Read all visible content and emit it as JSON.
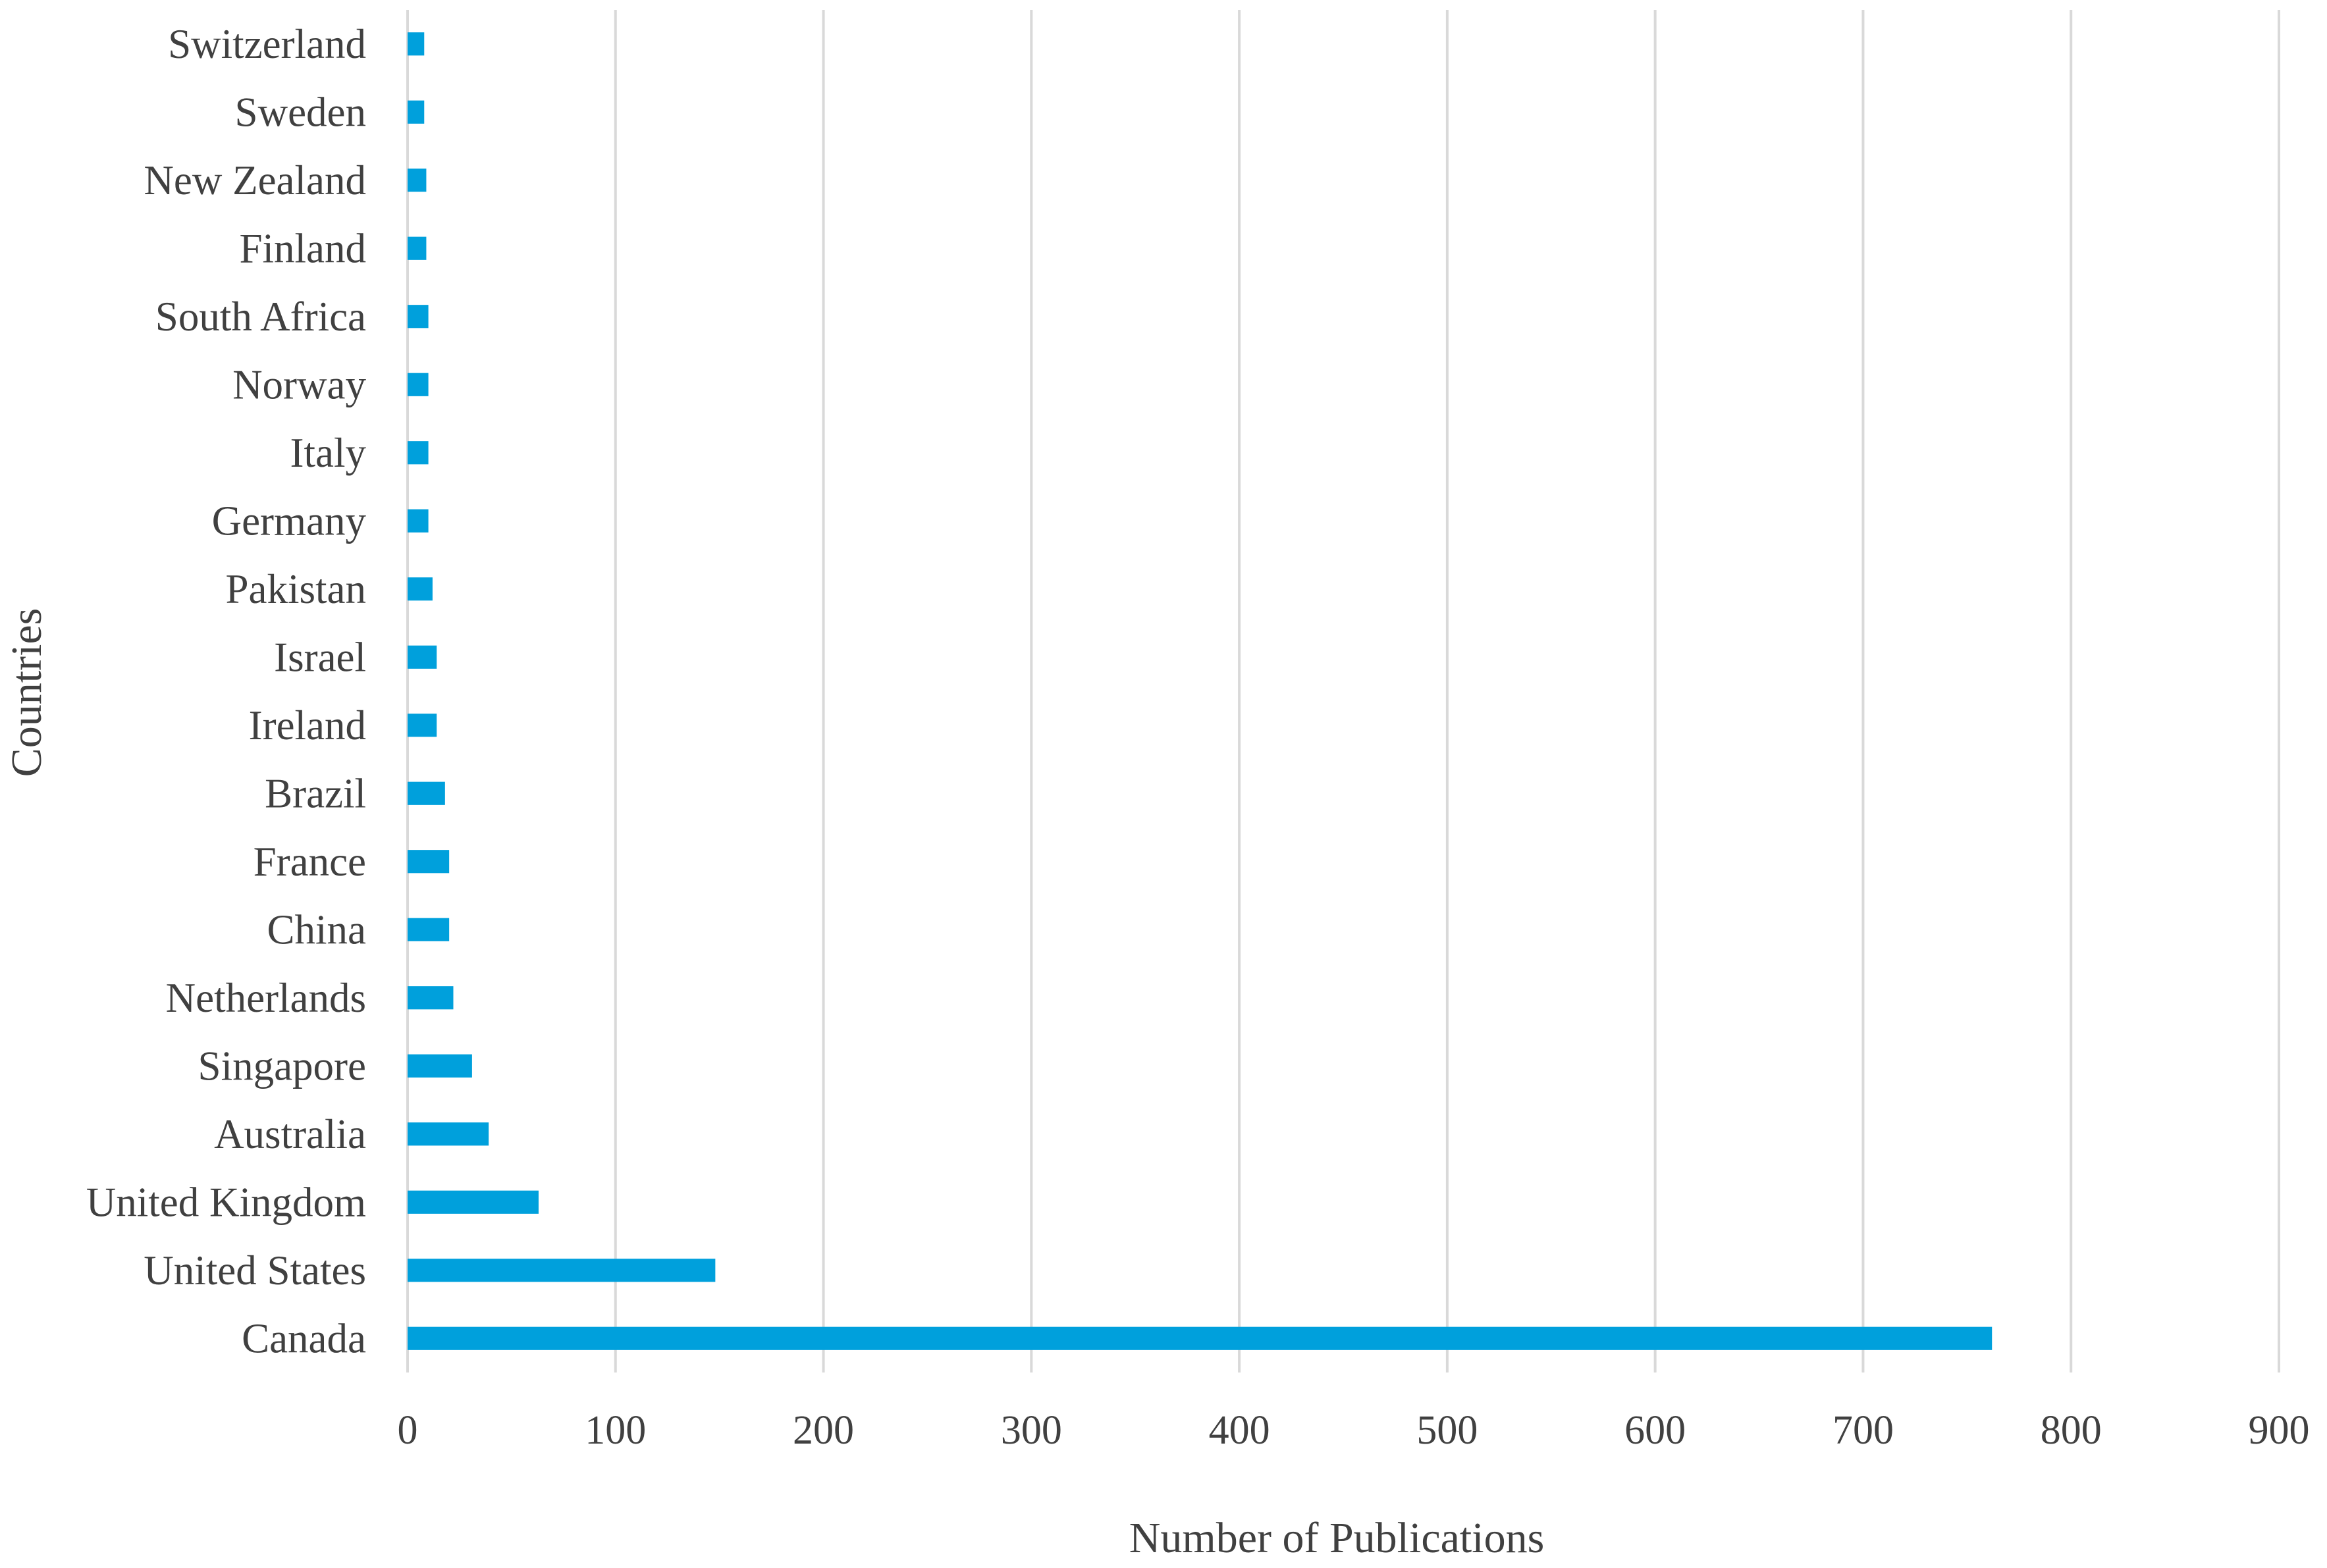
{
  "chart_data": {
    "type": "bar",
    "orientation": "horizontal",
    "title": "",
    "xlabel": "Number of Publications",
    "ylabel": "Countries",
    "categories": [
      "Canada",
      "United States",
      "United Kingdom",
      "Australia",
      "Singapore",
      "Netherlands",
      "China",
      "France",
      "Brazil",
      "Ireland",
      "Israel",
      "Pakistan",
      "Germany",
      "Italy",
      "Norway",
      "South Africa",
      "Finland",
      "New Zealand",
      "Sweden",
      "Switzerland"
    ],
    "values": [
      762,
      148,
      63,
      39,
      31,
      22,
      20,
      20,
      18,
      14,
      14,
      12,
      10,
      10,
      10,
      10,
      9,
      9,
      8,
      8
    ],
    "xlim": [
      0,
      900
    ],
    "xticks": [
      "0",
      "100",
      "200",
      "300",
      "400",
      "500",
      "600",
      "700",
      "800",
      "900"
    ],
    "grid": "vertical",
    "legend": "none",
    "bar_color": "#00A0DC",
    "grid_color": "#D9D9D9"
  }
}
